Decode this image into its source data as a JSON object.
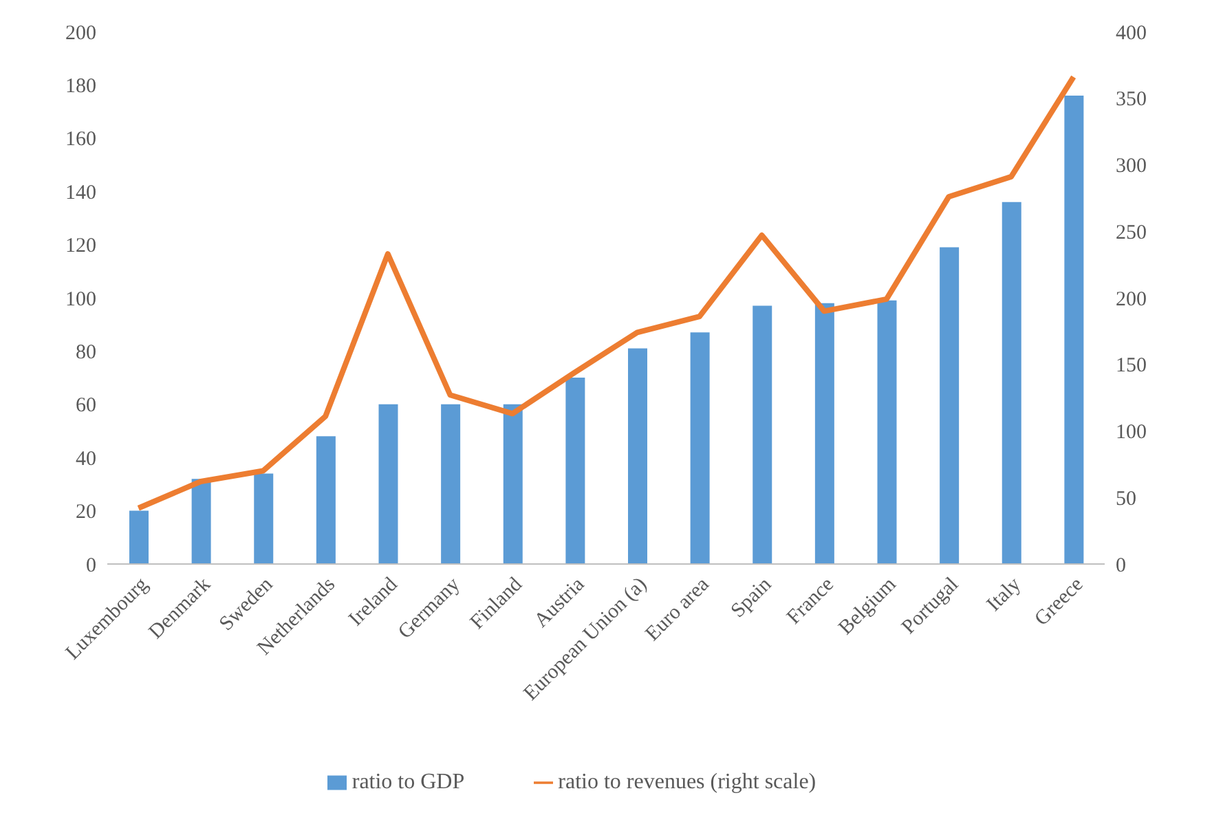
{
  "chart_data": {
    "type": "bar",
    "categories": [
      "Luxembourg",
      "Denmark",
      "Sweden",
      "Netherlands",
      "Ireland",
      "Germany",
      "Finland",
      "Austria",
      "European Union (a)",
      "Euro area",
      "Spain",
      "France",
      "Belgium",
      "Portugal",
      "Italy",
      "Greece"
    ],
    "series": [
      {
        "name": "ratio to GDP",
        "color": "#5b9bd5",
        "values": [
          20,
          32,
          34,
          48,
          60,
          60,
          60,
          70,
          81,
          87,
          97,
          98,
          99,
          119,
          136,
          176
        ]
      },
      {
        "name": "ratio to revenues (right scale)",
        "type": "line",
        "axis": "y2",
        "color": "#ed7d31",
        "values": [
          42,
          62,
          70,
          111,
          233,
          127,
          113,
          144,
          174,
          186,
          247,
          190,
          199,
          276,
          291,
          366
        ]
      }
    ],
    "ylim": [
      0,
      200
    ],
    "yticks": [
      0,
      20,
      40,
      60,
      80,
      100,
      120,
      140,
      160,
      180,
      200
    ],
    "y2lim": [
      0,
      400
    ],
    "y2ticks": [
      0,
      50,
      100,
      150,
      200,
      250,
      300,
      350,
      400
    ],
    "grid": false,
    "legend": "bottom",
    "marker": "none"
  }
}
